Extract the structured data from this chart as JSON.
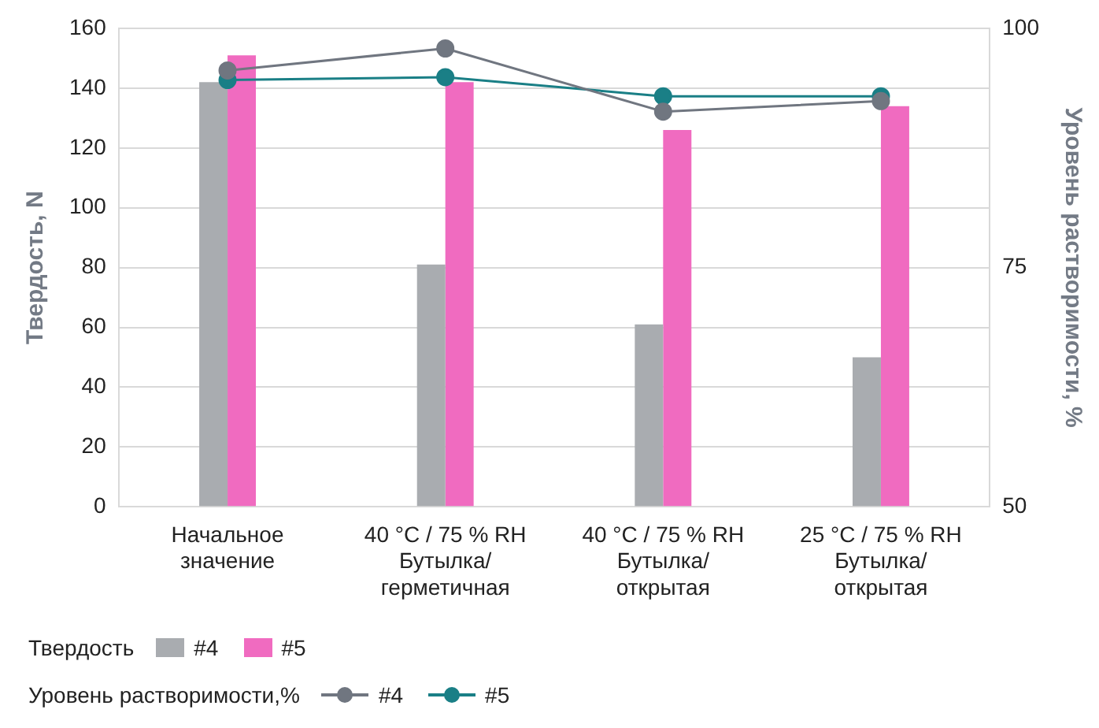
{
  "chart_data": {
    "type": "bar",
    "ylabel": "Твердость, N",
    "y2label": "Уровень растворимости, %",
    "categories": [
      "Начальное\nзначение",
      "40 °C / 75 % RH\nБутылка/\nгерметичная",
      "40 °C / 75 % RH\nБутылка/\nоткрытая",
      "25 °C / 75 % RH\nБутылка/\nоткрытая"
    ],
    "series": [
      {
        "name": "#4",
        "color": "#a9acb0",
        "values": [
          142,
          81,
          61,
          50
        ]
      },
      {
        "name": "#5",
        "color": "#f06bc0",
        "values": [
          151,
          142,
          126,
          134
        ]
      },
      {
        "name": "#4",
        "type": "line",
        "axis": "y2",
        "color": "#707680",
        "values": [
          95.6,
          97.9,
          91.3,
          92.4
        ]
      },
      {
        "name": "#5",
        "type": "line",
        "axis": "y2",
        "color": "#1a7f86",
        "values": [
          94.6,
          94.9,
          92.9,
          92.9
        ]
      }
    ],
    "ylim": [
      0,
      160
    ],
    "yticks": [
      0,
      20,
      40,
      60,
      80,
      100,
      120,
      140,
      160
    ],
    "y2lim": [
      50,
      100
    ],
    "y2ticks": [
      50,
      75,
      100
    ],
    "annotations": [
      "Твердость",
      "Уровень растворимости,%"
    ],
    "grid": "y",
    "legend": "bottom",
    "marker": "circle",
    "line_style": "solid"
  }
}
